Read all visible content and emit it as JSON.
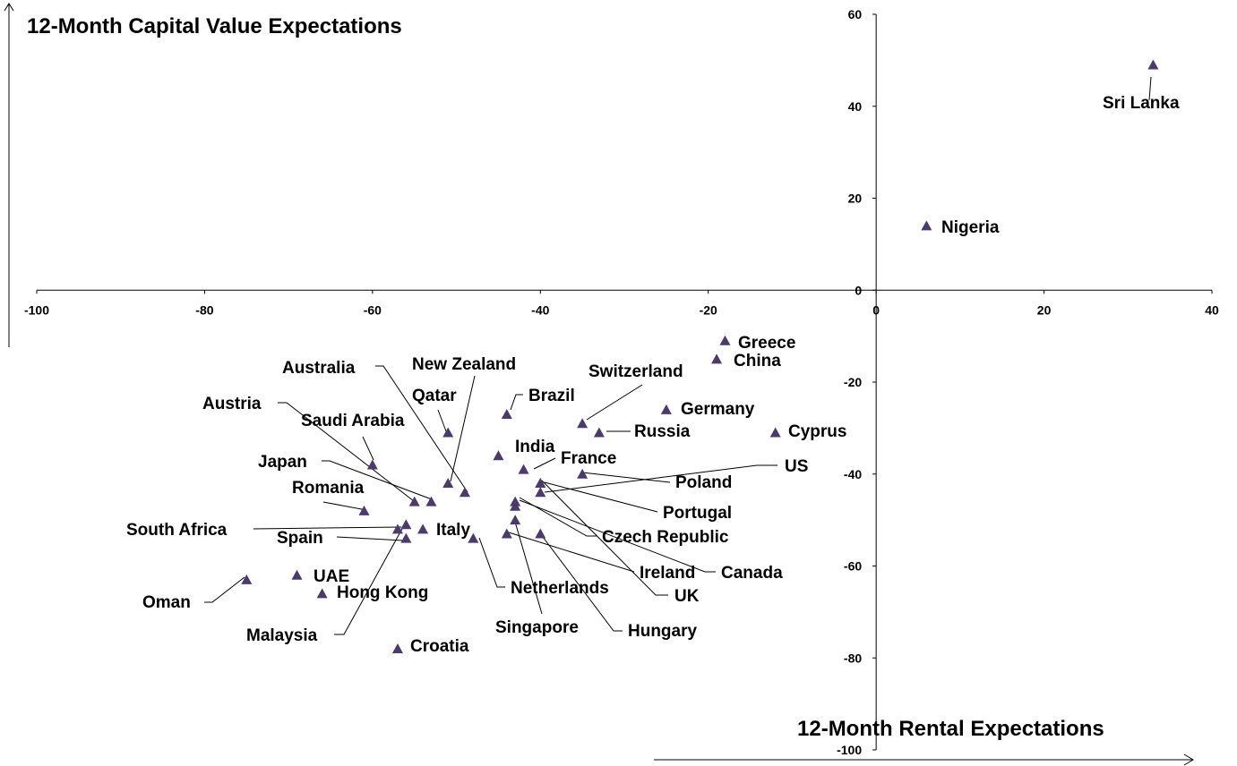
{
  "chart_data": {
    "type": "scatter",
    "y_title": "12-Month Capital Value Expectations",
    "x_title": "12-Month Rental Expectations",
    "xlim": [
      -100,
      40
    ],
    "ylim": [
      -100,
      60
    ],
    "x_ticks": [
      -100,
      -80,
      -60,
      -40,
      -20,
      0,
      20,
      40
    ],
    "y_ticks": [
      60,
      40,
      20,
      0,
      -20,
      -40,
      -60,
      -80,
      -100
    ],
    "marker_color": "#4b3a6b",
    "points": [
      {
        "name": "Sri Lanka",
        "x": 33,
        "y": 49
      },
      {
        "name": "Nigeria",
        "x": 6,
        "y": 14
      },
      {
        "name": "Greece",
        "x": -18,
        "y": -11
      },
      {
        "name": "China",
        "x": -19,
        "y": -15
      },
      {
        "name": "Switzerland",
        "x": -35,
        "y": -29
      },
      {
        "name": "Germany",
        "x": -25,
        "y": -26
      },
      {
        "name": "Russia",
        "x": -33,
        "y": -31
      },
      {
        "name": "Cyprus",
        "x": -12,
        "y": -31
      },
      {
        "name": "Brazil",
        "x": -44,
        "y": -27
      },
      {
        "name": "India",
        "x": -45,
        "y": -36
      },
      {
        "name": "France",
        "x": -42,
        "y": -39
      },
      {
        "name": "US",
        "x": -40,
        "y": -44
      },
      {
        "name": "Poland",
        "x": -35,
        "y": -40
      },
      {
        "name": "Portugal",
        "x": -40,
        "y": -42
      },
      {
        "name": "Czech Republic",
        "x": -43,
        "y": -47
      },
      {
        "name": "Canada",
        "x": -43,
        "y": -46
      },
      {
        "name": "Ireland",
        "x": -44,
        "y": -53
      },
      {
        "name": "UK",
        "x": -40,
        "y": -42
      },
      {
        "name": "Hungary",
        "x": -40,
        "y": -53
      },
      {
        "name": "Singapore",
        "x": -43,
        "y": -50
      },
      {
        "name": "Netherlands",
        "x": -48,
        "y": -54
      },
      {
        "name": "Australia",
        "x": -49,
        "y": -44
      },
      {
        "name": "New Zealand",
        "x": -51,
        "y": -42
      },
      {
        "name": "Qatar",
        "x": -51,
        "y": -31
      },
      {
        "name": "Austria",
        "x": -55,
        "y": -46
      },
      {
        "name": "Saudi Arabia",
        "x": -60,
        "y": -38
      },
      {
        "name": "Japan",
        "x": -53,
        "y": -46
      },
      {
        "name": "Romania",
        "x": -61,
        "y": -48
      },
      {
        "name": "Italy",
        "x": -54,
        "y": -52
      },
      {
        "name": "South Africa",
        "x": -57,
        "y": -52
      },
      {
        "name": "Spain",
        "x": -56,
        "y": -54
      },
      {
        "name": "Malaysia",
        "x": -56,
        "y": -51
      },
      {
        "name": "Oman",
        "x": -75,
        "y": -63
      },
      {
        "name": "UAE",
        "x": -69,
        "y": -62
      },
      {
        "name": "Hong Kong",
        "x": -66,
        "y": -66
      },
      {
        "name": "Croatia",
        "x": -57,
        "y": -78
      }
    ]
  }
}
